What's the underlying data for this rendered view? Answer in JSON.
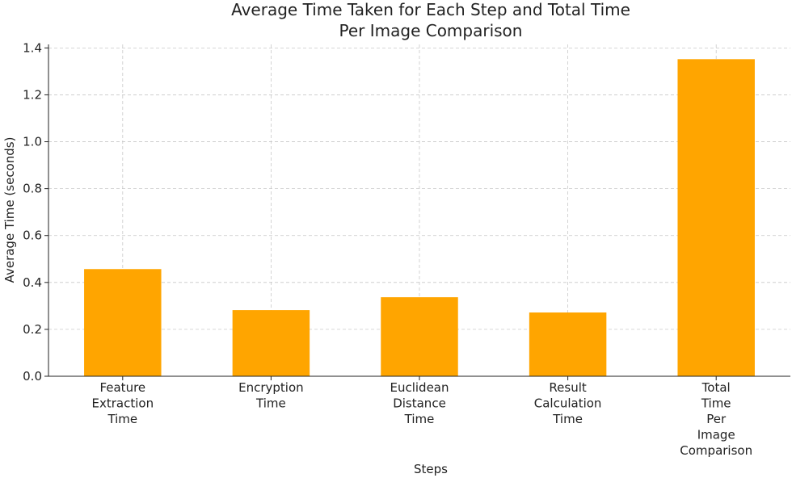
{
  "chart_data": {
    "type": "bar",
    "title": "Average Time Taken for Each Step and Total Time\nPer Image Comparison",
    "x_label": "Steps",
    "y_label": "Average Time (seconds)",
    "categories": [
      "Feature\nExtraction\nTime",
      "Encryption\nTime",
      "Euclidean\nDistance\nTime",
      "Result\nCalculation\nTime",
      "Total\nTime\nPer\nImage\nComparison"
    ],
    "values": [
      0.457,
      0.282,
      0.337,
      0.272,
      1.352
    ],
    "color": "#ffa500",
    "ylim": [
      0,
      1.415
    ],
    "yticks": [
      {
        "value": 0,
        "label": "0.0"
      },
      {
        "value": 0.2,
        "label": "0.2"
      },
      {
        "value": 0.4,
        "label": "0.4"
      },
      {
        "value": 0.6,
        "label": "0.6"
      },
      {
        "value": 0.8,
        "label": "0.8"
      },
      {
        "value": 1.0,
        "label": "1.0"
      },
      {
        "value": 1.2,
        "label": "1.2"
      },
      {
        "value": 1.4,
        "label": "1.4"
      }
    ],
    "grid": true
  }
}
